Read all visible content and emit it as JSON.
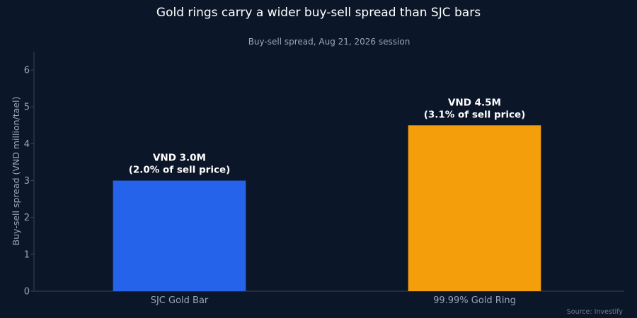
{
  "chart_data": {
    "type": "bar",
    "title": "Gold rings carry a wider buy-sell spread than SJC bars",
    "subtitle": "Buy-sell spread, Aug 21, 2026 session",
    "xlabel": "",
    "ylabel": "Buy-sell spread (VND million/tael)",
    "ylim": [
      0,
      6.5
    ],
    "yticks": [
      0,
      1,
      2,
      3,
      4,
      5,
      6
    ],
    "grid": false,
    "categories": [
      "SJC Gold Bar",
      "99.99% Gold Ring"
    ],
    "values": [
      3.0,
      4.5
    ],
    "colors": [
      "#2563eb",
      "#f59e0b"
    ],
    "data_labels": [
      [
        "VND 3.0M",
        "(2.0% of sell price)"
      ],
      [
        "VND 4.5M",
        "(3.1% of sell price)"
      ]
    ],
    "source": "Source: Investify"
  }
}
